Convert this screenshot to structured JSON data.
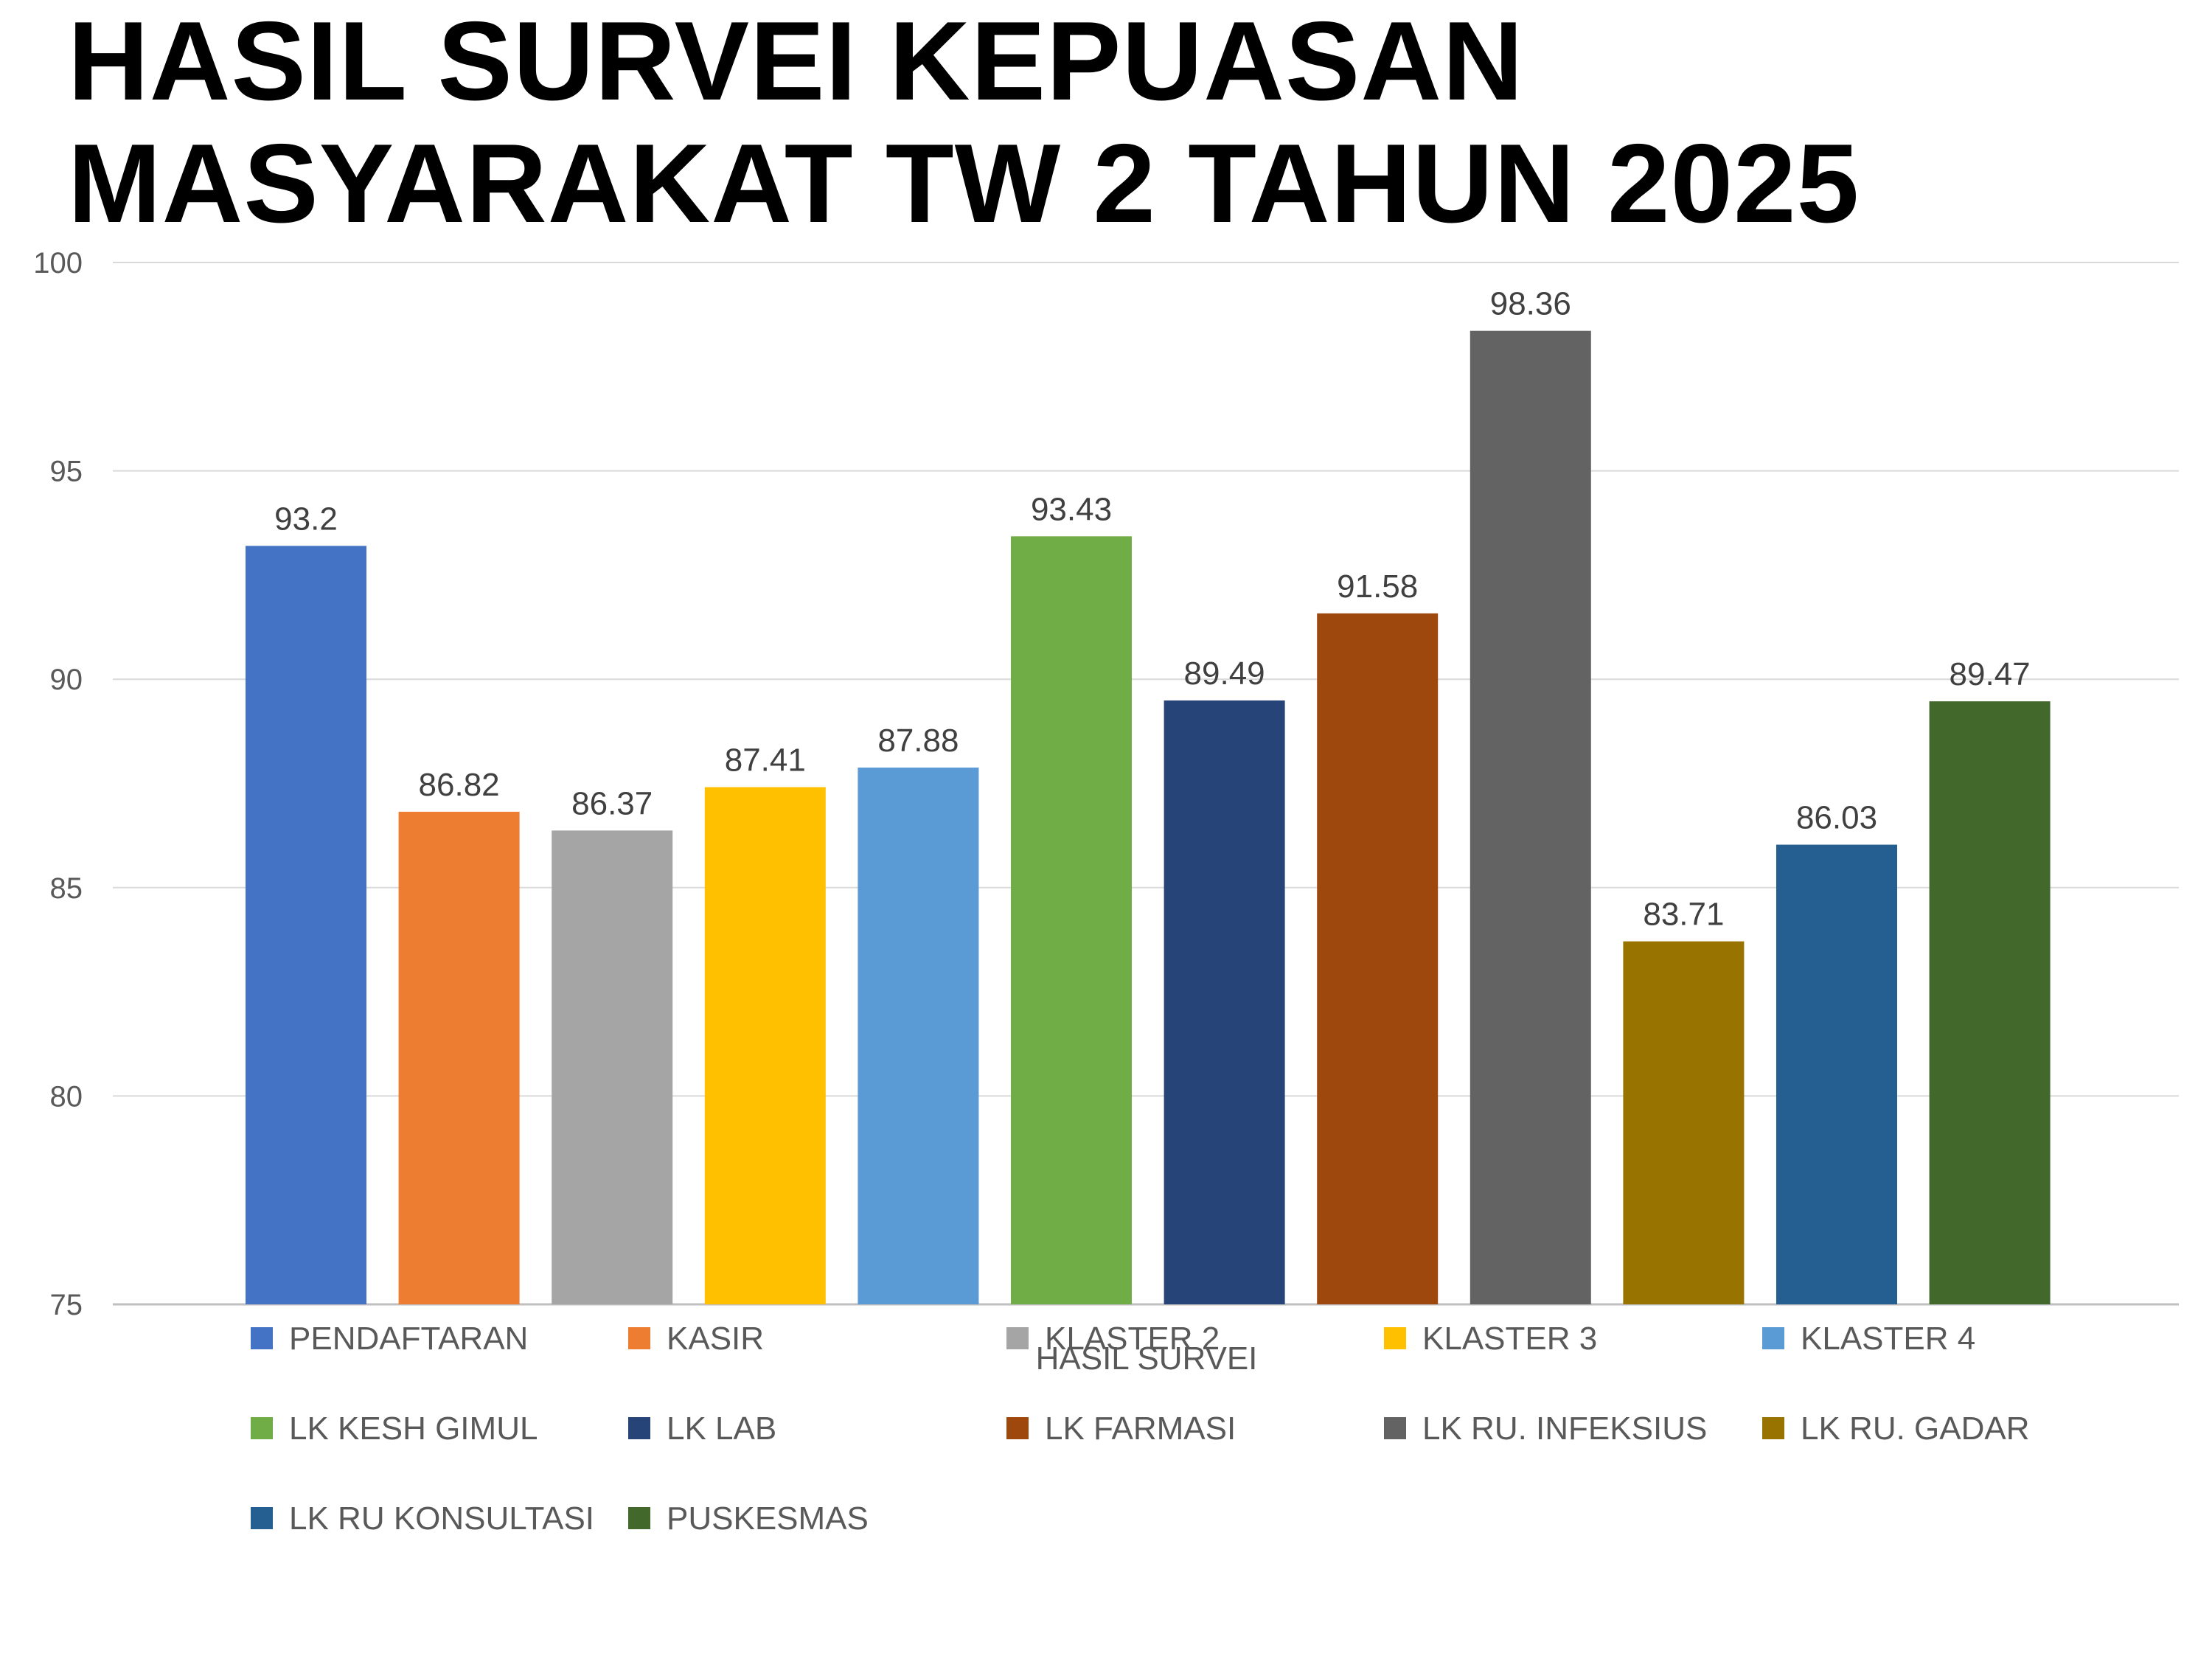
{
  "title_lines": [
    "HASIL SURVEI KEPUASAN",
    "MASYARAKAT TW 2 TAHUN 2025"
  ],
  "chart_data": {
    "type": "bar",
    "title": "HASIL SURVEI KEPUASAN MASYARAKAT TW 2 TAHUN 2025",
    "xlabel": "HASIL SURVEI",
    "ylabel": "",
    "ylim": [
      75,
      100
    ],
    "yticks": [
      75,
      80,
      85,
      90,
      95,
      100
    ],
    "grid": true,
    "legend_position": "bottom",
    "series": [
      {
        "name": "PENDAFTARAN",
        "value": 93.2,
        "label": "93.2",
        "color": "#4472C4"
      },
      {
        "name": "KASIR",
        "value": 86.82,
        "label": "86.82",
        "color": "#ED7D31"
      },
      {
        "name": "KLASTER 2",
        "value": 86.37,
        "label": "86.37",
        "color": "#A5A5A5"
      },
      {
        "name": "KLASTER 3",
        "value": 87.41,
        "label": "87.41",
        "color": "#FFC000"
      },
      {
        "name": "KLASTER 4",
        "value": 87.88,
        "label": "87.88",
        "color": "#5B9BD5"
      },
      {
        "name": "LK KESH GIMUL",
        "value": 93.43,
        "label": "93.43",
        "color": "#70AD47"
      },
      {
        "name": "LK LAB",
        "value": 89.49,
        "label": "89.49",
        "color": "#264478"
      },
      {
        "name": "LK FARMASI",
        "value": 91.58,
        "label": "91.58",
        "color": "#9E480E"
      },
      {
        "name": "LK RU. INFEKSIUS",
        "value": 98.36,
        "label": "98.36",
        "color": "#636363"
      },
      {
        "name": "LK RU. GADAR",
        "value": 83.71,
        "label": "83.71",
        "color": "#997300"
      },
      {
        "name": "LK RU KONSULTASI",
        "value": 86.03,
        "label": "86.03",
        "color": "#255E91"
      },
      {
        "name": "PUSKESMAS",
        "value": 89.47,
        "label": "89.47",
        "color": "#43682B"
      }
    ]
  }
}
